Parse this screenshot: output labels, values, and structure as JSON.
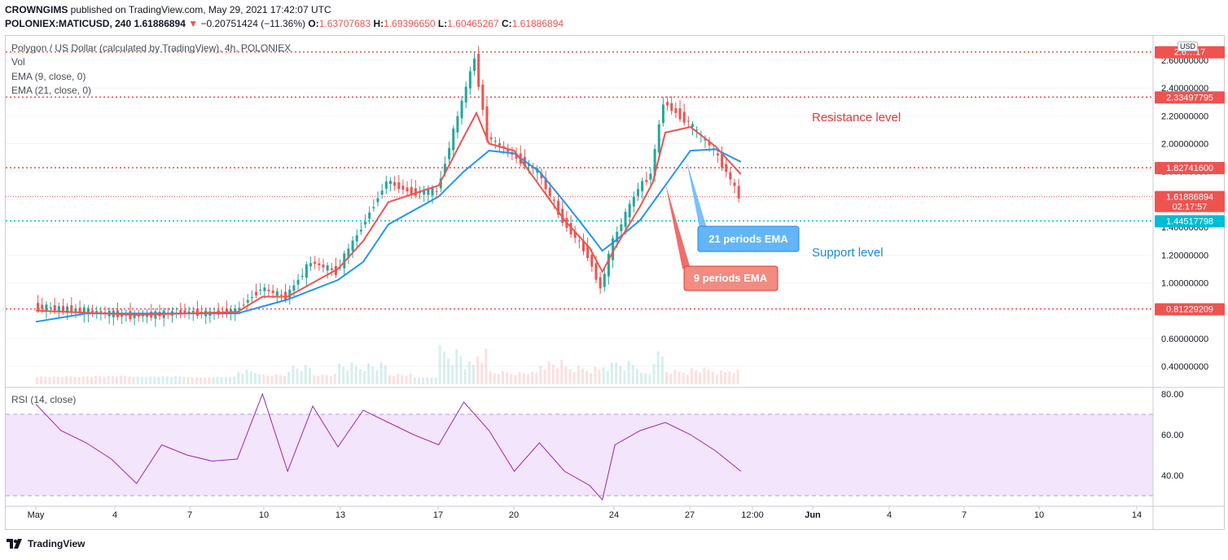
{
  "header": {
    "publisher": "CROWNGIMS",
    "published_line": " published on TradingView.com, May 29, 2021 17:42:07 UTC",
    "symbol": "POLONIEX:MATICUSD, 240",
    "last_price": "1.61886894",
    "change_arrow": "▼",
    "change": "−0.20751424 (−11.36%)",
    "o_label": "O:",
    "o_value": "1.63707683",
    "h_label": "H:",
    "h_value": "1.69396650",
    "l_label": "L:",
    "l_value": "1.60465267",
    "c_label": "C:",
    "c_value": "1.61886894"
  },
  "legend": {
    "title": "Polygon / US Dollar (calculated by TradingView), 4h, POLONIEX",
    "vol": "Vol",
    "ema9": "EMA (9, close, 0)",
    "ema21": "EMA (21, close, 0)",
    "rsi": "RSI (14, close)"
  },
  "currency_badge": "USD",
  "annotations": {
    "resistance": "Resistance level",
    "support": "Support level",
    "ema21_callout": "21 periods EMA",
    "ema9_callout": "9 periods EMA"
  },
  "price_tags": [
    {
      "text": "2.6…17",
      "value": 2.66,
      "bg": "#ef5350"
    },
    {
      "text": "2.33497795",
      "value": 2.33497795,
      "bg": "#ef5350"
    },
    {
      "text": "1.82741600",
      "value": 1.827416,
      "bg": "#ef5350"
    },
    {
      "text": "1.61886894",
      "value": 1.61886894,
      "bg": "#ef5350",
      "sub": "02:17:57"
    },
    {
      "text": "1.44517798",
      "value": 1.44517798,
      "bg": "#00bcd4"
    },
    {
      "text": "0.81229209",
      "value": 0.81229209,
      "bg": "#ef5350"
    }
  ],
  "colors": {
    "up": "#26a69a",
    "down": "#ef5350",
    "ema9": "#ef5350",
    "ema21": "#2196f3",
    "rsi_line": "#9c27b0",
    "rsi_band": "#f3e5fb"
  },
  "chart_data": {
    "type": "candlestick",
    "price_axis": {
      "ticks": [
        "2.60000000",
        "2.40000000",
        "2.20000000",
        "2.00000000",
        "1.80000000",
        "1.60000000",
        "1.40000000",
        "1.20000000",
        "1.00000000",
        "0.80000000",
        "0.60000000",
        "0.40000000"
      ],
      "tick_values": [
        2.6,
        2.4,
        2.2,
        2.0,
        1.8,
        1.6,
        1.4,
        1.2,
        1.0,
        0.8,
        0.6,
        0.4
      ]
    },
    "rsi_axis": {
      "ticks": [
        "80.00",
        "60.00",
        "40.00"
      ],
      "tick_values": [
        80,
        60,
        40
      ],
      "band": [
        30,
        70
      ]
    },
    "x_labels": [
      "May",
      "4",
      "7",
      "10",
      "13",
      "17",
      "20",
      "24",
      "27",
      "12:00",
      "1 Jun",
      "4",
      "7",
      "10",
      "14"
    ],
    "x_label_text": [
      "May",
      "4",
      "7",
      "10",
      "13",
      "17",
      "20",
      "24",
      "27",
      "12:00",
      "Jun",
      "4",
      "7",
      "10",
      "14"
    ],
    "horizontal_levels": [
      {
        "name": "resistance-top",
        "value": 2.66,
        "color": "#ef5350"
      },
      {
        "name": "resistance",
        "value": 2.33497795,
        "color": "#ef5350"
      },
      {
        "name": "mid-resistance",
        "value": 1.827416,
        "color": "#ef5350"
      },
      {
        "name": "last-price",
        "value": 1.61886894,
        "color": "#ef5350"
      },
      {
        "name": "support",
        "value": 1.44517798,
        "color": "#00bcd4"
      },
      {
        "name": "lower-support",
        "value": 0.81229209,
        "color": "#ef5350"
      }
    ],
    "close_path": [
      {
        "d": "2021-05-01",
        "v": 0.83
      },
      {
        "d": "2021-05-03",
        "v": 0.8
      },
      {
        "d": "2021-05-05",
        "v": 0.76
      },
      {
        "d": "2021-05-07",
        "v": 0.79
      },
      {
        "d": "2021-05-08",
        "v": 0.78
      },
      {
        "d": "2021-05-09",
        "v": 0.8
      },
      {
        "d": "2021-05-10",
        "v": 0.96
      },
      {
        "d": "2021-05-11",
        "v": 0.9
      },
      {
        "d": "2021-05-12",
        "v": 1.15
      },
      {
        "d": "2021-05-13",
        "v": 1.08
      },
      {
        "d": "2021-05-14",
        "v": 1.4
      },
      {
        "d": "2021-05-15",
        "v": 1.73
      },
      {
        "d": "2021-05-16",
        "v": 1.65
      },
      {
        "d": "2021-05-17",
        "v": 1.66
      },
      {
        "d": "2021-05-18",
        "v": 2.3
      },
      {
        "d": "2021-05-18T12",
        "v": 2.62
      },
      {
        "d": "2021-05-19",
        "v": 2.05
      },
      {
        "d": "2021-05-20",
        "v": 1.92
      },
      {
        "d": "2021-05-21",
        "v": 1.8
      },
      {
        "d": "2021-05-22",
        "v": 1.45
      },
      {
        "d": "2021-05-23",
        "v": 1.2
      },
      {
        "d": "2021-05-23T12",
        "v": 0.96
      },
      {
        "d": "2021-05-24",
        "v": 1.3
      },
      {
        "d": "2021-05-25",
        "v": 1.68
      },
      {
        "d": "2021-05-25T12",
        "v": 1.78
      },
      {
        "d": "2021-05-26",
        "v": 2.3
      },
      {
        "d": "2021-05-27",
        "v": 2.15
      },
      {
        "d": "2021-05-28",
        "v": 1.95
      },
      {
        "d": "2021-05-28T12",
        "v": 1.8
      },
      {
        "d": "2021-05-29",
        "v": 1.62
      }
    ],
    "ema9_path": [
      {
        "d": "2021-05-01",
        "v": 0.8
      },
      {
        "d": "2021-05-05",
        "v": 0.77
      },
      {
        "d": "2021-05-09",
        "v": 0.79
      },
      {
        "d": "2021-05-10",
        "v": 0.9
      },
      {
        "d": "2021-05-11",
        "v": 0.9
      },
      {
        "d": "2021-05-13",
        "v": 1.1
      },
      {
        "d": "2021-05-14",
        "v": 1.3
      },
      {
        "d": "2021-05-15",
        "v": 1.58
      },
      {
        "d": "2021-05-17",
        "v": 1.7
      },
      {
        "d": "2021-05-18",
        "v": 2.05
      },
      {
        "d": "2021-05-18T12",
        "v": 2.22
      },
      {
        "d": "2021-05-19",
        "v": 2.0
      },
      {
        "d": "2021-05-20",
        "v": 1.95
      },
      {
        "d": "2021-05-21",
        "v": 1.7
      },
      {
        "d": "2021-05-22",
        "v": 1.45
      },
      {
        "d": "2021-05-23",
        "v": 1.25
      },
      {
        "d": "2021-05-23T12",
        "v": 1.08
      },
      {
        "d": "2021-05-24",
        "v": 1.25
      },
      {
        "d": "2021-05-25",
        "v": 1.55
      },
      {
        "d": "2021-05-25T12",
        "v": 1.72
      },
      {
        "d": "2021-05-26",
        "v": 2.08
      },
      {
        "d": "2021-05-27",
        "v": 2.12
      },
      {
        "d": "2021-05-28",
        "v": 1.98
      },
      {
        "d": "2021-05-29",
        "v": 1.78
      }
    ],
    "ema21_path": [
      {
        "d": "2021-05-01",
        "v": 0.72
      },
      {
        "d": "2021-05-03",
        "v": 0.78
      },
      {
        "d": "2021-05-07",
        "v": 0.78
      },
      {
        "d": "2021-05-09",
        "v": 0.78
      },
      {
        "d": "2021-05-11",
        "v": 0.88
      },
      {
        "d": "2021-05-13",
        "v": 1.02
      },
      {
        "d": "2021-05-14",
        "v": 1.15
      },
      {
        "d": "2021-05-15",
        "v": 1.42
      },
      {
        "d": "2021-05-17",
        "v": 1.62
      },
      {
        "d": "2021-05-18",
        "v": 1.8
      },
      {
        "d": "2021-05-19",
        "v": 1.95
      },
      {
        "d": "2021-05-20",
        "v": 1.93
      },
      {
        "d": "2021-05-21",
        "v": 1.8
      },
      {
        "d": "2021-05-22",
        "v": 1.58
      },
      {
        "d": "2021-05-23",
        "v": 1.35
      },
      {
        "d": "2021-05-23T12",
        "v": 1.23
      },
      {
        "d": "2021-05-24",
        "v": 1.3
      },
      {
        "d": "2021-05-25",
        "v": 1.45
      },
      {
        "d": "2021-05-26",
        "v": 1.7
      },
      {
        "d": "2021-05-27",
        "v": 1.95
      },
      {
        "d": "2021-05-28",
        "v": 1.96
      },
      {
        "d": "2021-05-29",
        "v": 1.87
      }
    ],
    "rsi_path": [
      {
        "d": "2021-05-01",
        "v": 75
      },
      {
        "d": "2021-05-02",
        "v": 62
      },
      {
        "d": "2021-05-03",
        "v": 56
      },
      {
        "d": "2021-05-04",
        "v": 48
      },
      {
        "d": "2021-05-05",
        "v": 36
      },
      {
        "d": "2021-05-06",
        "v": 55
      },
      {
        "d": "2021-05-07",
        "v": 50
      },
      {
        "d": "2021-05-08",
        "v": 47
      },
      {
        "d": "2021-05-09",
        "v": 48
      },
      {
        "d": "2021-05-10",
        "v": 80
      },
      {
        "d": "2021-05-11",
        "v": 42
      },
      {
        "d": "2021-05-12",
        "v": 74
      },
      {
        "d": "2021-05-13",
        "v": 54
      },
      {
        "d": "2021-05-14",
        "v": 72
      },
      {
        "d": "2021-05-15",
        "v": 66
      },
      {
        "d": "2021-05-16",
        "v": 60
      },
      {
        "d": "2021-05-17",
        "v": 55
      },
      {
        "d": "2021-05-18",
        "v": 76
      },
      {
        "d": "2021-05-19",
        "v": 62
      },
      {
        "d": "2021-05-20",
        "v": 42
      },
      {
        "d": "2021-05-21",
        "v": 56
      },
      {
        "d": "2021-05-22",
        "v": 42
      },
      {
        "d": "2021-05-23",
        "v": 35
      },
      {
        "d": "2021-05-23T12",
        "v": 28
      },
      {
        "d": "2021-05-24",
        "v": 55
      },
      {
        "d": "2021-05-25",
        "v": 62
      },
      {
        "d": "2021-05-26",
        "v": 66
      },
      {
        "d": "2021-05-27",
        "v": 60
      },
      {
        "d": "2021-05-28",
        "v": 52
      },
      {
        "d": "2021-05-28T12",
        "v": 47
      },
      {
        "d": "2021-05-29",
        "v": 42
      }
    ]
  }
}
